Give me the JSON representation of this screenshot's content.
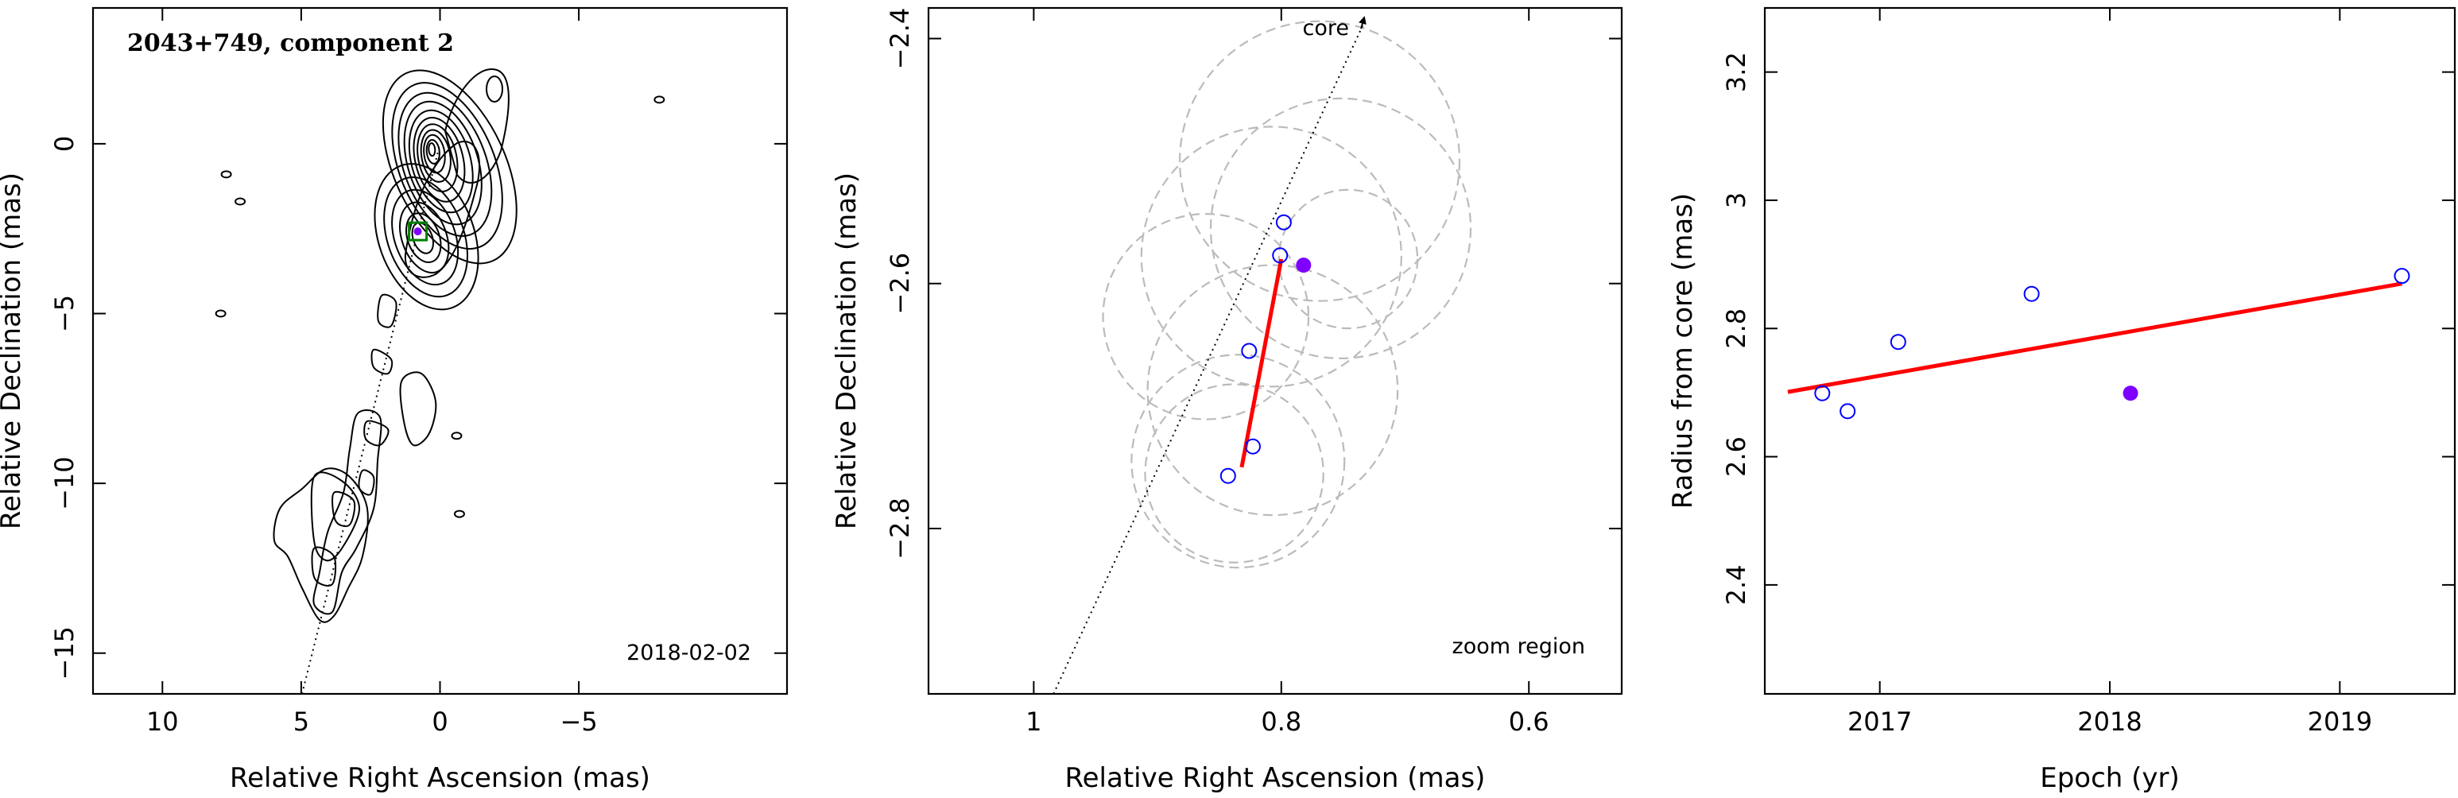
{
  "colors": {
    "highlight": "#7f00ff",
    "epoch_marker": "#0000ff",
    "fit_line": "#ff0000",
    "box": "#008000",
    "circle": "#bbbbbb",
    "contour": "#000000"
  },
  "chart_data": [
    {
      "type": "contour-map",
      "title": "2043+749, component 2",
      "xlabel": "Relative Right Ascension (mas)",
      "ylabel": "Relative Declination (mas)",
      "xlim": [
        12.5,
        -12.5
      ],
      "ylim": [
        -16.2,
        4
      ],
      "xticks": [
        10,
        5,
        0,
        -5
      ],
      "yticks": [
        0,
        -5,
        -10,
        -15
      ],
      "xtick_labels": [
        "10",
        "5",
        "0",
        "−5"
      ],
      "ytick_labels": [
        "0",
        "−5",
        "−10",
        "−15"
      ],
      "epoch_label": "2018-02-02",
      "component_position": {
        "x": 0.8,
        "y": -2.58
      },
      "core_direction_line": {
        "x": [
          4.97,
          0.0
        ],
        "y": [
          -16.2,
          0.0
        ]
      },
      "islands": [
        {
          "x": 7.7,
          "y": -0.9
        },
        {
          "x": 7.2,
          "y": -1.7
        },
        {
          "x": 7.9,
          "y": -5.0
        },
        {
          "x": -7.9,
          "y": 1.3
        },
        {
          "x": -0.6,
          "y": -8.6
        },
        {
          "x": -0.7,
          "y": -10.9
        }
      ]
    },
    {
      "type": "scatter",
      "xlabel": "Relative Right Ascension (mas)",
      "ylabel": "Relative Declination (mas)",
      "xlim": [
        1.085,
        0.525
      ],
      "ylim": [
        -2.935,
        -2.375
      ],
      "xticks": [
        1,
        0.8,
        0.6
      ],
      "yticks": [
        -2.4,
        -2.6,
        -2.8
      ],
      "xtick_labels": [
        "1",
        "0.8",
        "0.6"
      ],
      "ytick_labels": [
        "−2.4",
        "−2.6",
        "−2.8"
      ],
      "core_label": "core",
      "zoom_label": "zoom region",
      "series": [
        {
          "x": [
            0.798,
            0.801,
            0.826,
            0.823,
            0.843
          ],
          "y": [
            -2.55,
            -2.577,
            -2.655,
            -2.733,
            -2.757
          ],
          "filled": false
        },
        {
          "x": [
            0.782
          ],
          "y": [
            -2.585
          ],
          "filled": true
        }
      ],
      "fit_line": {
        "x": [
          0.8,
          0.832
        ],
        "y": [
          -2.58,
          -2.75
        ]
      },
      "core_line": {
        "x": [
          0.984,
          0.733
        ],
        "y": [
          -2.935,
          -2.375
        ]
      },
      "error_circles": [
        {
          "x": 0.769,
          "y": -2.5,
          "r": 0.113
        },
        {
          "x": 0.752,
          "y": -2.555,
          "r": 0.105
        },
        {
          "x": 0.808,
          "y": -2.578,
          "r": 0.105
        },
        {
          "x": 0.746,
          "y": -2.58,
          "r": 0.056
        },
        {
          "x": 0.861,
          "y": -2.627,
          "r": 0.083
        },
        {
          "x": 0.807,
          "y": -2.687,
          "r": 0.101
        },
        {
          "x": 0.835,
          "y": -2.745,
          "r": 0.086
        },
        {
          "x": 0.838,
          "y": -2.755,
          "r": 0.072
        }
      ]
    },
    {
      "type": "scatter",
      "xlabel": "Epoch (yr)",
      "ylabel": "Radius from core (mas)",
      "xlim": [
        2016.5,
        2019.5
      ],
      "ylim": [
        2.23,
        3.3
      ],
      "xticks": [
        2017,
        2018,
        2019
      ],
      "yticks": [
        2.4,
        2.6,
        2.8,
        3,
        3.2
      ],
      "xtick_labels": [
        "2017",
        "2018",
        "2019"
      ],
      "ytick_labels": [
        "2.4",
        "2.6",
        "2.8",
        "3",
        "3.2"
      ],
      "series": [
        {
          "x": [
            2016.75,
            2016.86,
            2017.08,
            2017.66,
            2019.27
          ],
          "y": [
            2.699,
            2.671,
            2.779,
            2.854,
            2.882
          ],
          "filled": false
        },
        {
          "x": [
            2018.09
          ],
          "y": [
            2.699
          ],
          "filled": true
        }
      ],
      "fit_line": {
        "x": [
          2016.6,
          2019.27
        ],
        "y": [
          2.701,
          2.87
        ]
      }
    }
  ]
}
